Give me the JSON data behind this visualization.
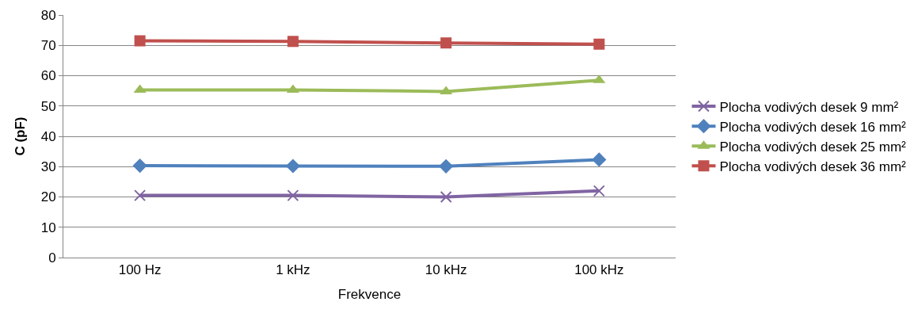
{
  "chart_data": {
    "type": "line",
    "xlabel": "Frekvence",
    "ylabel": "C (pF)",
    "categories": [
      "100 Hz",
      "1 kHz",
      "10 kHz",
      "100 kHz"
    ],
    "series": [
      {
        "name": "Plocha vodivých desek 9 mm²",
        "color": "#8064a2",
        "marker": "cross",
        "values": [
          20.5,
          20.5,
          20,
          22
        ]
      },
      {
        "name": "Plocha vodivých desek 16 mm²",
        "color": "#4f81bd",
        "marker": "diamond",
        "values": [
          30.3,
          30.2,
          30.1,
          32.3
        ]
      },
      {
        "name": "Plocha vodivých desek 25 mm²",
        "color": "#9bbb59",
        "marker": "triangle",
        "values": [
          55.3,
          55.3,
          54.8,
          58.5
        ]
      },
      {
        "name": "Plocha vodivých desek 36 mm²",
        "color": "#c0504d",
        "marker": "square",
        "values": [
          71.5,
          71.3,
          70.8,
          70.4
        ]
      }
    ],
    "ylim": [
      0,
      80
    ],
    "yticks": [
      0,
      10,
      20,
      30,
      40,
      50,
      60,
      70,
      80
    ],
    "grid": "y",
    "legend": "right"
  }
}
